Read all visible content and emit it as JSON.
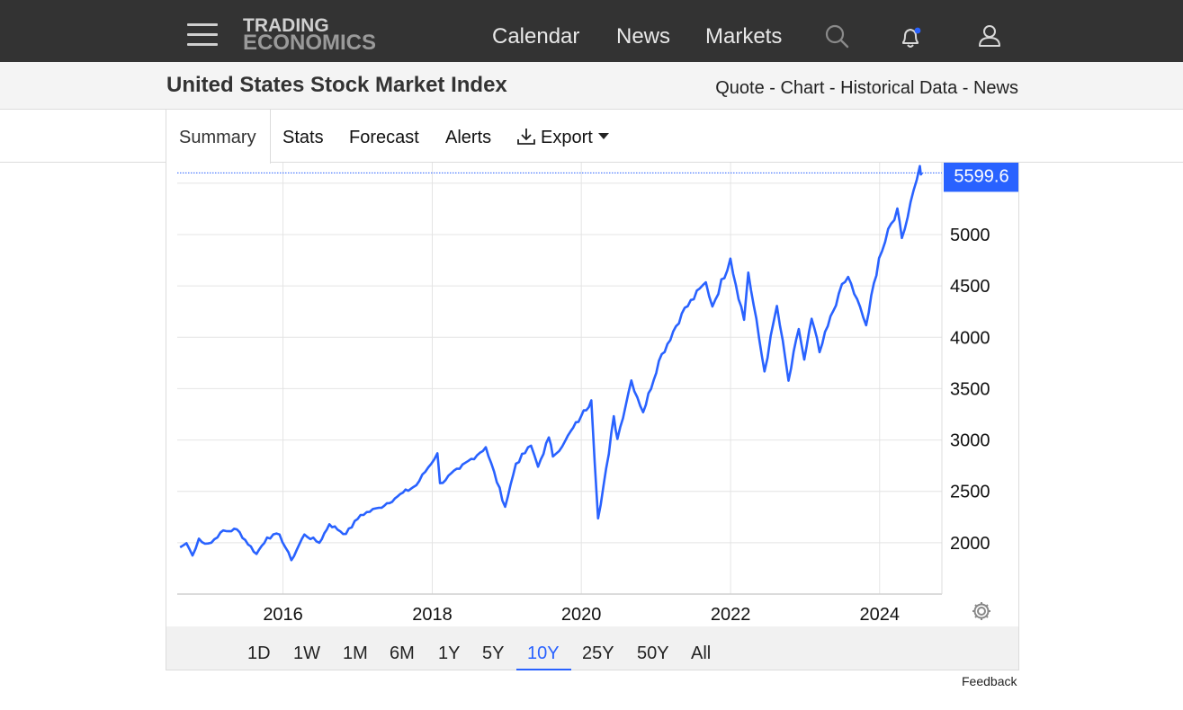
{
  "header": {
    "logo_line1": "TRADING",
    "logo_line2": "ECONOMICS",
    "nav": [
      "Calendar",
      "News",
      "Markets"
    ]
  },
  "page": {
    "title": "United States Stock Market Index",
    "quicklinks": [
      "Quote",
      "Chart",
      "Historical Data",
      "News"
    ]
  },
  "tabs": {
    "items": [
      "Summary",
      "Stats",
      "Forecast",
      "Alerts",
      "Export"
    ],
    "active": "Summary"
  },
  "ranges": {
    "items": [
      "1D",
      "1W",
      "1M",
      "6M",
      "1Y",
      "5Y",
      "10Y",
      "25Y",
      "50Y",
      "All"
    ],
    "active": "10Y"
  },
  "feedback_label": "Feedback",
  "colors": {
    "line": "#2962ff",
    "topbar": "#333333",
    "accent": "#2962ff"
  },
  "icons": [
    "hamburger-menu-icon",
    "search-icon",
    "bell-icon",
    "user-icon",
    "download-icon",
    "gear-icon"
  ],
  "chart_data": {
    "type": "line",
    "series": [
      {
        "values": [
          [
            "2014-08-15",
            1955
          ],
          [
            "2014-09-15",
            1995
          ],
          [
            "2014-10-15",
            1875
          ],
          [
            "2014-11-15",
            2040
          ],
          [
            "2014-12-15",
            1990
          ],
          [
            "2015-01-15",
            2000
          ],
          [
            "2015-03-01",
            2100
          ],
          [
            "2015-05-20",
            2130
          ],
          [
            "2015-08-24",
            1890
          ],
          [
            "2015-10-15",
            2050
          ],
          [
            "2015-12-15",
            2080
          ],
          [
            "2016-02-11",
            1830
          ],
          [
            "2016-04-15",
            2080
          ],
          [
            "2016-06-27",
            2000
          ],
          [
            "2016-08-15",
            2180
          ],
          [
            "2016-11-04",
            2085
          ],
          [
            "2017-01-15",
            2270
          ],
          [
            "2017-04-15",
            2340
          ],
          [
            "2017-07-15",
            2450
          ],
          [
            "2017-10-15",
            2560
          ],
          [
            "2018-01-26",
            2870
          ],
          [
            "2018-02-08",
            2580
          ],
          [
            "2018-05-15",
            2720
          ],
          [
            "2018-09-20",
            2930
          ],
          [
            "2018-12-24",
            2350
          ],
          [
            "2019-02-15",
            2770
          ],
          [
            "2019-04-30",
            2945
          ],
          [
            "2019-06-03",
            2740
          ],
          [
            "2019-07-26",
            3025
          ],
          [
            "2019-08-15",
            2840
          ],
          [
            "2019-10-15",
            2995
          ],
          [
            "2019-12-31",
            3230
          ],
          [
            "2020-02-19",
            3386
          ],
          [
            "2020-03-23",
            2237
          ],
          [
            "2020-05-15",
            2865
          ],
          [
            "2020-06-08",
            3232
          ],
          [
            "2020-06-26",
            3010
          ],
          [
            "2020-09-02",
            3580
          ],
          [
            "2020-10-30",
            3270
          ],
          [
            "2021-01-15",
            3770
          ],
          [
            "2021-05-07",
            4230
          ],
          [
            "2021-09-02",
            4535
          ],
          [
            "2021-10-04",
            4300
          ],
          [
            "2021-12-31",
            4766
          ],
          [
            "2022-03-08",
            4170
          ],
          [
            "2022-03-29",
            4630
          ],
          [
            "2022-06-16",
            3667
          ],
          [
            "2022-08-16",
            4305
          ],
          [
            "2022-10-12",
            3577
          ],
          [
            "2022-12-01",
            4080
          ],
          [
            "2022-12-28",
            3783
          ],
          [
            "2023-02-02",
            4180
          ],
          [
            "2023-03-13",
            3855
          ],
          [
            "2023-06-15",
            4425
          ],
          [
            "2023-07-31",
            4588
          ],
          [
            "2023-10-27",
            4117
          ],
          [
            "2023-12-29",
            4770
          ],
          [
            "2024-03-28",
            5254
          ],
          [
            "2024-04-19",
            4967
          ],
          [
            "2024-06-15",
            5430
          ],
          [
            "2024-07-16",
            5667
          ],
          [
            "2024-07-26",
            5600
          ]
        ]
      }
    ],
    "last_value": "5599.6",
    "x_ticks": [
      "2016",
      "2018",
      "2020",
      "2022",
      "2024"
    ],
    "y_ticks": [
      2000,
      2500,
      3000,
      3500,
      4000,
      4500,
      5000
    ],
    "xlim": [
      "2014-08-01",
      "2024-11-01"
    ],
    "ylim": [
      1500,
      5700
    ],
    "grid": true
  }
}
